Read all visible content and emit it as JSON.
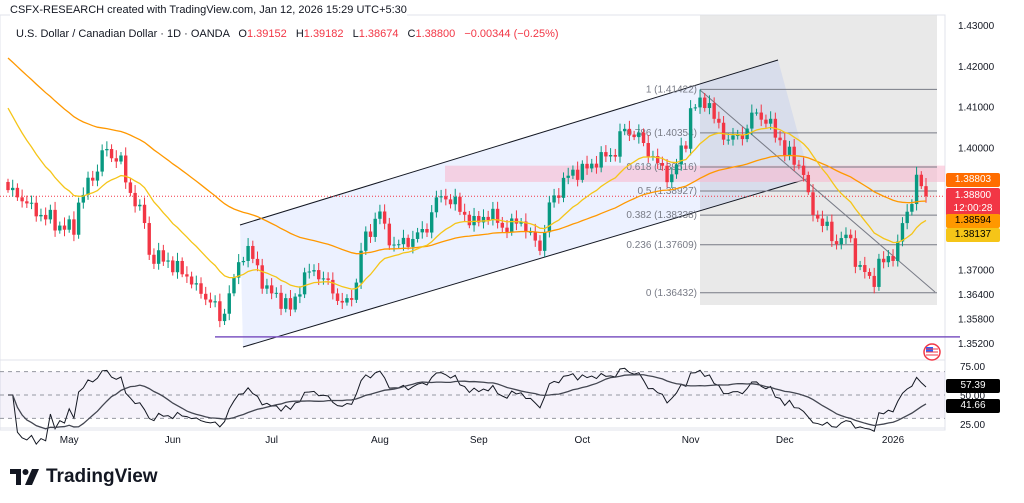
{
  "header": {
    "attribution": "CSFX-RESEARCH created with TradingView.com, Jan 12, 2026 15:29 UTC+5:30",
    "symbol": "U.S. Dollar / Canadian Dollar · 1D · OANDA",
    "open_label": "O",
    "open": "1.39152",
    "high_label": "H",
    "high": "1.39182",
    "low_label": "L",
    "low": "1.38674",
    "close_label": "C",
    "close": "1.38800",
    "change": "−0.00344 (−0.25%)"
  },
  "price_badges": {
    "ma_slow": {
      "value": "1.38803",
      "color": "#ff6d00"
    },
    "last": {
      "value": "1.38800",
      "countdown": "12:00:28",
      "color": "#f23645"
    },
    "ma_mid": {
      "value": "1.38594",
      "color": "#ff9800"
    },
    "ma_fast": {
      "value": "1.38137",
      "color": "#f5c518"
    }
  },
  "rsi_badges": {
    "rsi": "57.39",
    "rsi_ma": "41.66"
  },
  "logo": {
    "text": "TradingView"
  },
  "colors": {
    "up": "#089981",
    "down": "#f23645",
    "channel": "#2962ff",
    "fib_zone": "#e0e0e0",
    "supply_zone": "#f8bbd0",
    "support": "#7e57c2",
    "ma_orange": "#ff9800",
    "ma_yellow": "#f5c518"
  },
  "chart_data": {
    "type": "candlestick",
    "symbol": "USDCAD",
    "timeframe": "1D",
    "ylim": [
      1.352,
      1.43
    ],
    "y_ticks": [
      "1.43000",
      "1.42000",
      "1.41000",
      "1.40000",
      "1.37000",
      "1.36400",
      "1.35800",
      "1.35200"
    ],
    "y_tick_values": [
      1.43,
      1.42,
      1.41,
      1.4,
      1.37,
      1.364,
      1.358,
      1.352
    ],
    "x_ticks": [
      "May",
      "Jun",
      "Jul",
      "Aug",
      "Sep",
      "Oct",
      "Nov",
      "Dec",
      "2026"
    ],
    "date_range": [
      "2025-04-14",
      "2026-01-12"
    ],
    "approx_closes": [
      [
        "2025-04-14",
        1.3895
      ],
      [
        "2025-04-21",
        1.3846
      ],
      [
        "2025-04-28",
        1.381
      ],
      [
        "2025-05-02",
        1.38
      ],
      [
        "2025-05-08",
        1.393
      ],
      [
        "2025-05-12",
        1.399
      ],
      [
        "2025-05-16",
        1.397
      ],
      [
        "2025-05-21",
        1.387
      ],
      [
        "2025-05-26",
        1.3735
      ],
      [
        "2025-06-02",
        1.371
      ],
      [
        "2025-06-09",
        1.365
      ],
      [
        "2025-06-12",
        1.3625
      ],
      [
        "2025-06-16",
        1.357
      ],
      [
        "2025-06-20",
        1.371
      ],
      [
        "2025-06-24",
        1.375
      ],
      [
        "2025-06-27",
        1.3675
      ],
      [
        "2025-07-03",
        1.3625
      ],
      [
        "2025-07-07",
        1.36
      ],
      [
        "2025-07-10",
        1.3685
      ],
      [
        "2025-07-14",
        1.37
      ],
      [
        "2025-07-18",
        1.365
      ],
      [
        "2025-07-23",
        1.3613
      ],
      [
        "2025-07-28",
        1.375
      ],
      [
        "2025-08-01",
        1.3846
      ],
      [
        "2025-08-06",
        1.376
      ],
      [
        "2025-08-11",
        1.377
      ],
      [
        "2025-08-15",
        1.38
      ],
      [
        "2025-08-20",
        1.388
      ],
      [
        "2025-08-25",
        1.386
      ],
      [
        "2025-08-29",
        1.381
      ],
      [
        "2025-09-03",
        1.3834
      ],
      [
        "2025-09-09",
        1.38
      ],
      [
        "2025-09-12",
        1.3826
      ],
      [
        "2025-09-18",
        1.376
      ],
      [
        "2025-09-22",
        1.386
      ],
      [
        "2025-09-26",
        1.393
      ],
      [
        "2025-10-01",
        1.3944
      ],
      [
        "2025-10-06",
        1.397
      ],
      [
        "2025-10-09",
        1.398
      ],
      [
        "2025-10-14",
        1.404
      ],
      [
        "2025-10-17",
        1.403
      ],
      [
        "2025-10-22",
        1.398
      ],
      [
        "2025-10-24",
        1.394
      ],
      [
        "2025-10-28",
        1.393
      ],
      [
        "2025-10-31",
        1.4017
      ],
      [
        "2025-11-03",
        1.409
      ],
      [
        "2025-11-06",
        1.4116
      ],
      [
        "2025-11-10",
        1.4067
      ],
      [
        "2025-11-13",
        1.4018
      ],
      [
        "2025-11-18",
        1.403
      ],
      [
        "2025-11-21",
        1.409
      ],
      [
        "2025-11-25",
        1.4066
      ],
      [
        "2025-11-28",
        1.4018
      ],
      [
        "2025-12-03",
        1.397
      ],
      [
        "2025-12-05",
        1.394
      ],
      [
        "2025-12-09",
        1.3846
      ],
      [
        "2025-12-11",
        1.381
      ],
      [
        "2025-12-16",
        1.377
      ],
      [
        "2025-12-19",
        1.378
      ],
      [
        "2025-12-23",
        1.37
      ],
      [
        "2025-12-26",
        1.3675
      ],
      [
        "2025-12-29",
        1.371
      ],
      [
        "2026-01-02",
        1.375
      ],
      [
        "2026-01-06",
        1.384
      ],
      [
        "2026-01-08",
        1.3915
      ],
      [
        "2026-01-12",
        1.388
      ]
    ],
    "fibonacci": [
      {
        "label": "1 (1.41422)",
        "value": 1.41422
      },
      {
        "label": "0.786 (1.40354)",
        "text": "1.40354",
        "value": 1.40354
      },
      {
        "label": "0.618 (1.39516)",
        "value": 1.39516
      },
      {
        "label": "0.5 (1.38927)",
        "value": 1.38927
      },
      {
        "label": "0.382 (1.38338)",
        "value": 1.38338
      },
      {
        "label": "0.236 (1.37609)",
        "value": 1.37609
      },
      {
        "label": "0 (1.36432)",
        "value": 1.36432
      }
    ],
    "horizontal_support": 1.3535,
    "supply_zone": [
      1.3915,
      1.3955
    ],
    "rsi": {
      "ylim": [
        20,
        80
      ],
      "y_ticks": [
        "75.00",
        "50.00",
        "25.00"
      ],
      "bands": [
        30,
        50,
        70
      ]
    }
  }
}
